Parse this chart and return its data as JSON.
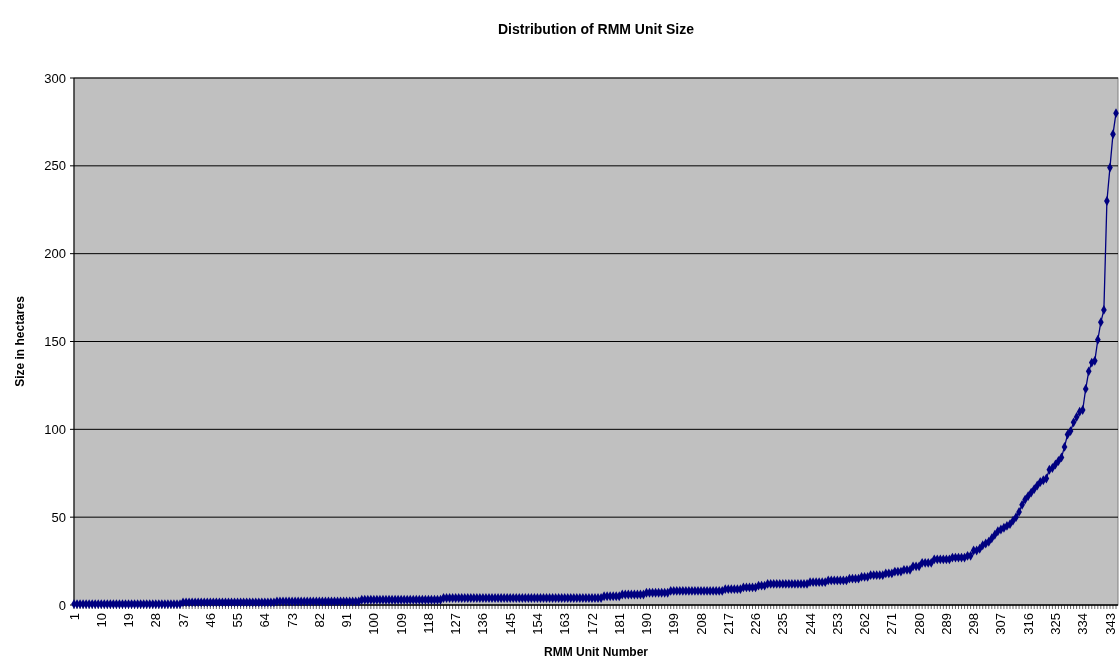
{
  "chart_data": {
    "type": "line",
    "title": "Distribution of RMM Unit Size",
    "xlabel": "RMM Unit Number",
    "ylabel": "Size in hectares",
    "categories": [
      "1",
      null,
      null,
      null,
      null,
      null,
      null,
      null,
      null,
      "10",
      null,
      null,
      null,
      null,
      null,
      null,
      null,
      null,
      "19",
      null,
      null,
      null,
      null,
      null,
      null,
      null,
      null,
      "28",
      null,
      null,
      null,
      null,
      null,
      null,
      null,
      null,
      "37",
      null,
      null,
      null,
      null,
      null,
      null,
      null,
      null,
      "46",
      null,
      null,
      null,
      null,
      null,
      null,
      null,
      null,
      "55",
      null,
      null,
      null,
      null,
      null,
      null,
      null,
      null,
      "64",
      null,
      null,
      null,
      null,
      null,
      null,
      null,
      null,
      "73",
      null,
      null,
      null,
      null,
      null,
      null,
      null,
      null,
      "82",
      null,
      null,
      null,
      null,
      null,
      null,
      null,
      null,
      "91",
      null,
      null,
      null,
      null,
      null,
      null,
      null,
      null,
      "100",
      null,
      null,
      null,
      null,
      null,
      null,
      null,
      null,
      "109",
      null,
      null,
      null,
      null,
      null,
      null,
      null,
      null,
      "118",
      null,
      null,
      null,
      null,
      null,
      null,
      null,
      null,
      "127",
      null,
      null,
      null,
      null,
      null,
      null,
      null,
      null,
      "136",
      null,
      null,
      null,
      null,
      null,
      null,
      null,
      null,
      "145",
      null,
      null,
      null,
      null,
      null,
      null,
      null,
      null,
      "154",
      null,
      null,
      null,
      null,
      null,
      null,
      null,
      null,
      "163",
      null,
      null,
      null,
      null,
      null,
      null,
      null,
      null,
      "172",
      null,
      null,
      null,
      null,
      null,
      null,
      null,
      null,
      "181",
      null,
      null,
      null,
      null,
      null,
      null,
      null,
      null,
      "190",
      null,
      null,
      null,
      null,
      null,
      null,
      null,
      null,
      "199",
      null,
      null,
      null,
      null,
      null,
      null,
      null,
      null,
      "208",
      null,
      null,
      null,
      null,
      null,
      null,
      null,
      null,
      "217",
      null,
      null,
      null,
      null,
      null,
      null,
      null,
      null,
      "226",
      null,
      null,
      null,
      null,
      null,
      null,
      null,
      null,
      "235",
      null,
      null,
      null,
      null,
      null,
      null,
      null,
      null,
      "244",
      null,
      null,
      null,
      null,
      null,
      null,
      null,
      null,
      "253",
      null,
      null,
      null,
      null,
      null,
      null,
      null,
      null,
      "262",
      null,
      null,
      null,
      null,
      null,
      null,
      null,
      null,
      "271",
      null,
      null,
      null,
      null,
      null,
      null,
      null,
      null,
      "280",
      null,
      null,
      null,
      null,
      null,
      null,
      null,
      null,
      "289",
      null,
      null,
      null,
      null,
      null,
      null,
      null,
      null,
      "298",
      null,
      null,
      null,
      null,
      null,
      null,
      null,
      null,
      "307",
      null,
      null,
      null,
      null,
      null,
      null,
      null,
      null,
      "316",
      null,
      null,
      null,
      null,
      null,
      null,
      null,
      null,
      "325",
      null,
      null,
      null,
      null,
      null,
      null,
      null,
      null,
      "334",
      null,
      null,
      null,
      null,
      null,
      null,
      null,
      null,
      "343",
      null,
      null
    ],
    "series": [
      {
        "color": "#000080",
        "values": [
          0.5,
          0.5,
          0.5,
          0.5,
          0.5,
          0.5,
          0.5,
          0.5,
          0.5,
          0.5,
          0.5,
          0.5,
          0.5,
          0.5,
          0.5,
          0.5,
          0.5,
          0.5,
          0.5,
          0.5,
          0.5,
          0.5,
          0.5,
          0.5,
          0.5,
          0.5,
          0.5,
          0.5,
          0.5,
          0.5,
          0.5,
          0.5,
          0.5,
          0.5,
          0.5,
          0.5,
          1.5,
          1.5,
          1.5,
          1.5,
          1.5,
          1.5,
          1.5,
          1.5,
          1.5,
          1.5,
          1.5,
          1.5,
          1.5,
          1.5,
          1.5,
          1.5,
          1.5,
          1.5,
          1.5,
          1.5,
          1.5,
          1.5,
          1.5,
          1.5,
          1.5,
          1.5,
          1.5,
          1.5,
          1.5,
          1.5,
          1.5,
          2,
          2,
          2,
          2,
          2,
          2,
          2,
          2,
          2,
          2,
          2,
          2,
          2,
          2,
          2,
          2,
          2,
          2,
          2,
          2,
          2,
          2,
          2,
          2,
          2,
          2,
          2,
          2,
          3,
          3,
          3,
          3,
          3,
          3,
          3,
          3,
          3,
          3,
          3,
          3,
          3,
          3,
          3,
          3,
          3,
          3,
          3,
          3,
          3,
          3,
          3,
          3,
          3,
          3,
          3,
          4,
          4,
          4,
          4,
          4,
          4,
          4,
          4,
          4,
          4,
          4,
          4,
          4,
          4,
          4,
          4,
          4,
          4,
          4,
          4,
          4,
          4,
          4,
          4,
          4,
          4,
          4,
          4,
          4,
          4,
          4,
          4,
          4,
          4,
          4,
          4,
          4,
          4,
          4,
          4,
          4,
          4,
          4,
          4,
          4,
          4,
          4,
          4,
          4,
          4,
          4,
          4,
          4,
          5,
          5,
          5,
          5,
          5,
          5,
          6,
          6,
          6,
          6,
          6,
          6,
          6,
          6,
          7,
          7,
          7,
          7,
          7,
          7,
          7,
          7,
          8,
          8,
          8,
          8,
          8,
          8,
          8,
          8,
          8,
          8,
          8,
          8,
          8,
          8,
          8,
          8,
          8,
          8,
          9,
          9,
          9,
          9,
          9,
          9,
          10,
          10,
          10,
          10,
          10,
          11,
          11,
          11,
          12,
          12,
          12,
          12,
          12,
          12,
          12,
          12,
          12,
          12,
          12,
          12,
          12,
          12,
          13,
          13,
          13,
          13,
          13,
          13,
          14,
          14,
          14,
          14,
          14,
          14,
          14,
          15,
          15,
          15,
          15,
          16,
          16,
          16,
          17,
          17,
          17,
          17,
          17,
          18,
          18,
          18,
          19,
          19,
          19,
          20,
          20,
          20,
          22,
          22,
          22,
          24,
          24,
          24,
          24,
          26,
          26,
          26,
          26,
          26,
          26,
          27,
          27,
          27,
          27,
          27,
          28,
          28,
          31,
          31,
          32,
          34,
          35,
          36,
          38,
          40,
          42,
          43,
          44,
          45,
          46,
          48,
          50,
          53,
          57,
          60,
          62,
          64,
          66,
          68,
          70,
          71,
          72,
          77,
          78,
          80,
          82,
          84,
          90,
          97,
          99,
          104,
          107,
          110,
          111,
          123,
          133,
          138,
          139,
          151,
          161,
          168,
          230,
          249,
          268,
          280
        ]
      }
    ],
    "ylim": [
      0,
      300
    ],
    "yticks": [
      0,
      50,
      100,
      150,
      200,
      250,
      300
    ],
    "grid": "y",
    "marker": "diamond",
    "line_style": "solid"
  }
}
